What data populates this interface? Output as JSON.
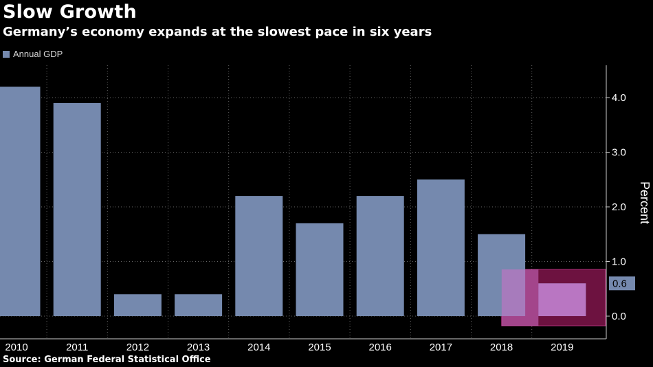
{
  "header": {
    "title": "Slow Growth",
    "subtitle": "Germany’s economy expands at the slowest pace in six years"
  },
  "legend": {
    "label": "Annual GDP"
  },
  "footer": {
    "source": "Source: German Federal Statistical Office"
  },
  "colors": {
    "bar": "#7589ae",
    "highlight_fill": "#6d1240",
    "highlight_overlay": "#d070c8",
    "highlight_border": "#b0307a",
    "grid": "#666666",
    "label_box": "#7589ae"
  },
  "chart_data": {
    "type": "bar",
    "title": "Slow Growth",
    "subtitle": "Germany’s economy expands at the slowest pace in six years",
    "categories": [
      "2010",
      "2011",
      "2012",
      "2013",
      "2014",
      "2015",
      "2016",
      "2017",
      "2018",
      "2019"
    ],
    "series": [
      {
        "name": "Annual GDP",
        "values": [
          4.2,
          3.9,
          0.4,
          0.4,
          2.2,
          1.7,
          2.2,
          2.5,
          1.5,
          0.6
        ]
      }
    ],
    "ylabel": "Percent",
    "xlabel": "",
    "ylim": [
      -0.4,
      4.6
    ],
    "yticks": [
      "0.0",
      "1.0",
      "2.0",
      "3.0",
      "4.0"
    ],
    "y_axis_position": "right",
    "grid": true,
    "legend_position": "top-left",
    "last_value_label": "0.6",
    "highlighted_category": "2019"
  }
}
